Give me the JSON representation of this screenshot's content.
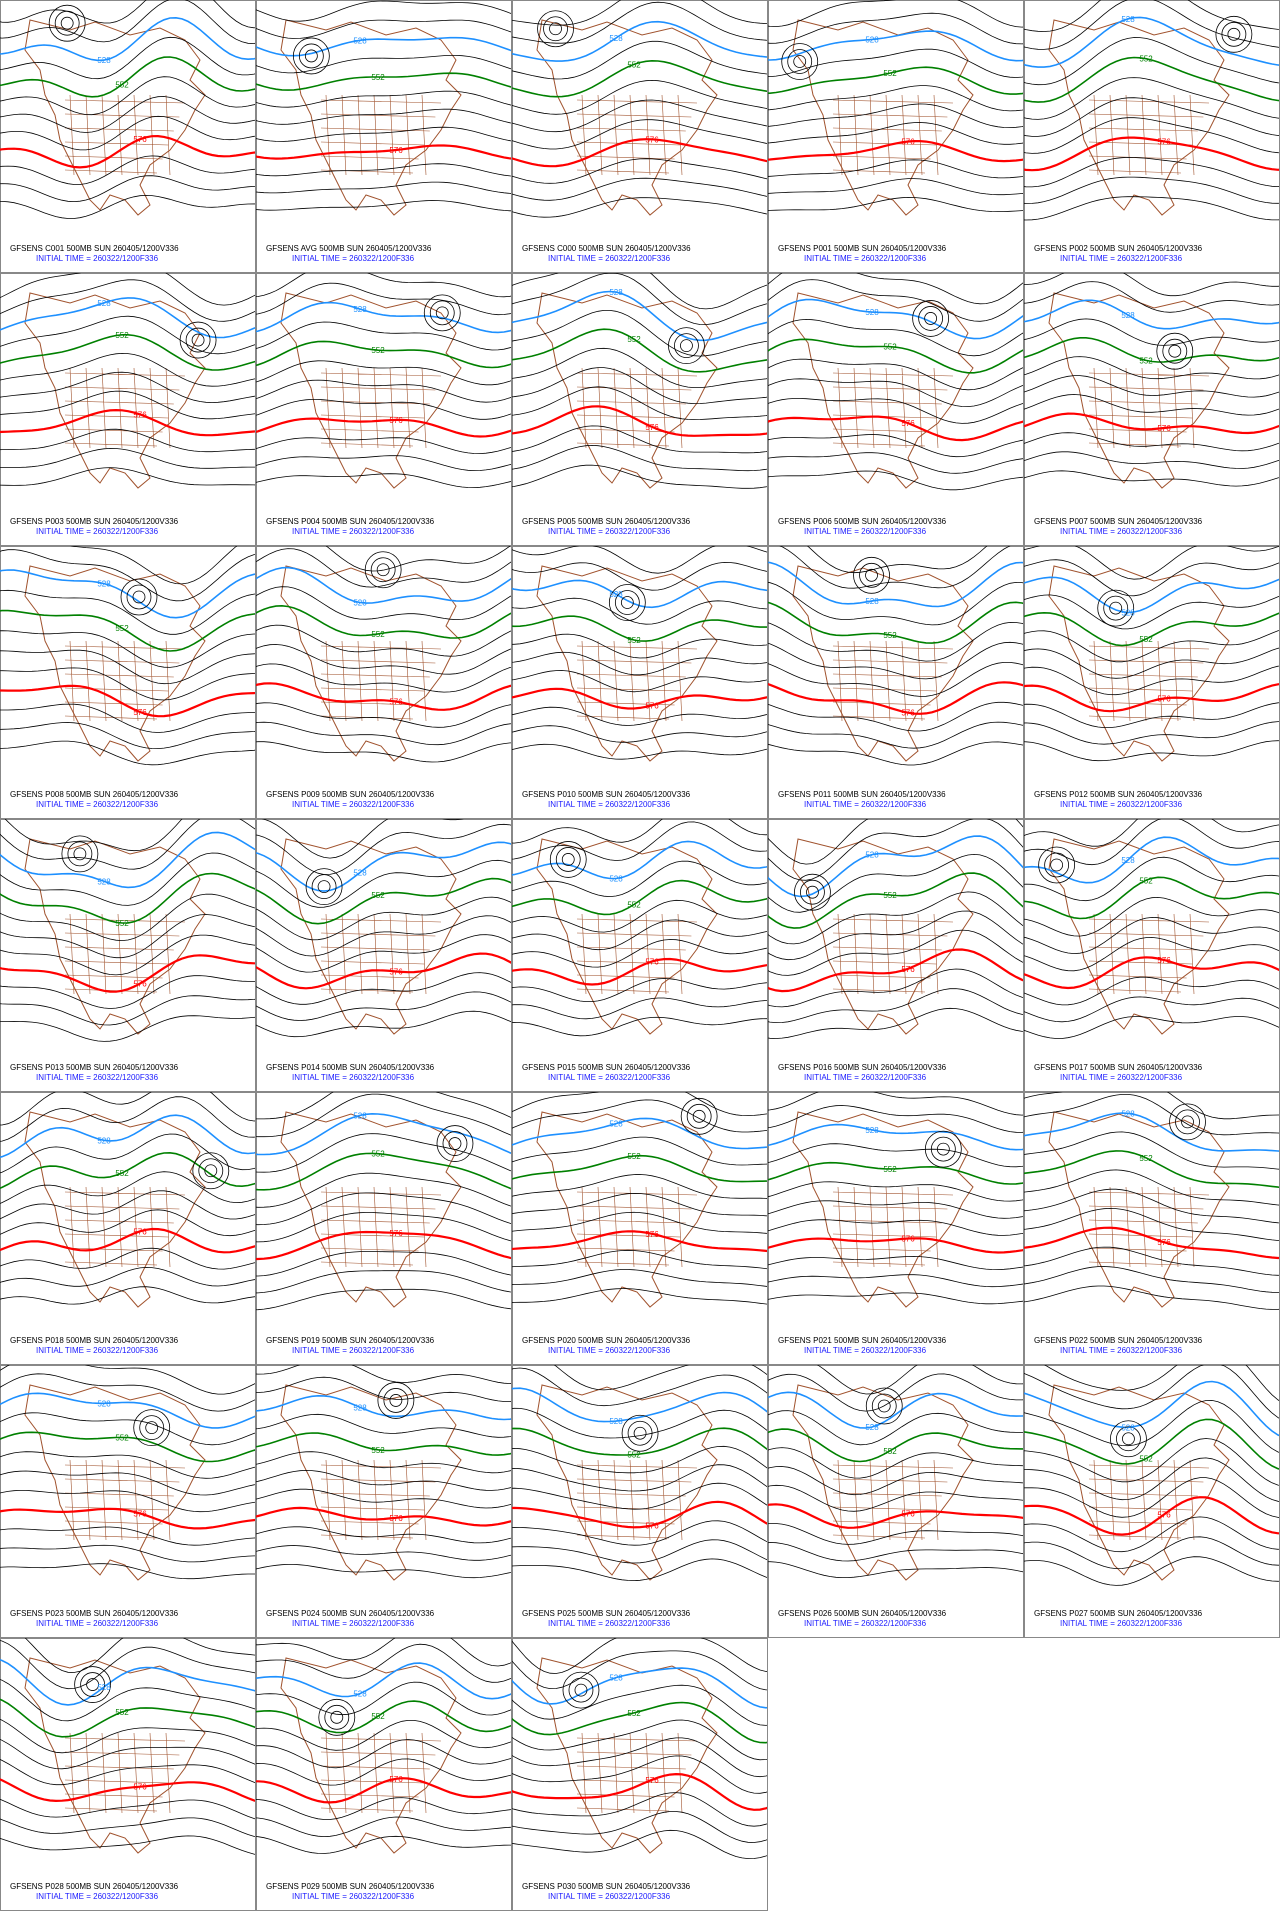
{
  "contour_labels": [
    "528",
    "552",
    "576"
  ],
  "panels": [
    {
      "title": "GFSENS C001 500MB SUN 260405/1200V336",
      "init": "INITIAL TIME = 260322/1200F336"
    },
    {
      "title": "GFSENS AVG 500MB SUN 260405/1200V336",
      "init": "INITIAL TIME = 260322/1200F336"
    },
    {
      "title": "GFSENS C000 500MB SUN 260405/1200V336",
      "init": "INITIAL TIME = 260322/1200F336"
    },
    {
      "title": "GFSENS P001 500MB SUN 260405/1200V336",
      "init": "INITIAL TIME = 260322/1200F336"
    },
    {
      "title": "GFSENS P002 500MB SUN 260405/1200V336",
      "init": "INITIAL TIME = 260322/1200F336"
    },
    {
      "title": "GFSENS P003 500MB SUN 260405/1200V336",
      "init": "INITIAL TIME = 260322/1200F336"
    },
    {
      "title": "GFSENS P004 500MB SUN 260405/1200V336",
      "init": "INITIAL TIME = 260322/1200F336"
    },
    {
      "title": "GFSENS P005 500MB SUN 260405/1200V336",
      "init": "INITIAL TIME = 260322/1200F336"
    },
    {
      "title": "GFSENS P006 500MB SUN 260405/1200V336",
      "init": "INITIAL TIME = 260322/1200F336"
    },
    {
      "title": "GFSENS P007 500MB SUN 260405/1200V336",
      "init": "INITIAL TIME = 260322/1200F336"
    },
    {
      "title": "GFSENS P008 500MB SUN 260405/1200V336",
      "init": "INITIAL TIME = 260322/1200F336"
    },
    {
      "title": "GFSENS P009 500MB SUN 260405/1200V336",
      "init": "INITIAL TIME = 260322/1200F336"
    },
    {
      "title": "GFSENS P010 500MB SUN 260405/1200V336",
      "init": "INITIAL TIME = 260322/1200F336"
    },
    {
      "title": "GFSENS P011 500MB SUN 260405/1200V336",
      "init": "INITIAL TIME = 260322/1200F336"
    },
    {
      "title": "GFSENS P012 500MB SUN 260405/1200V336",
      "init": "INITIAL TIME = 260322/1200F336"
    },
    {
      "title": "GFSENS P013 500MB SUN 260405/1200V336",
      "init": "INITIAL TIME = 260322/1200F336"
    },
    {
      "title": "GFSENS P014 500MB SUN 260405/1200V336",
      "init": "INITIAL TIME = 260322/1200F336"
    },
    {
      "title": "GFSENS P015 500MB SUN 260405/1200V336",
      "init": "INITIAL TIME = 260322/1200F336"
    },
    {
      "title": "GFSENS P016 500MB SUN 260405/1200V336",
      "init": "INITIAL TIME = 260322/1200F336"
    },
    {
      "title": "GFSENS P017 500MB SUN 260405/1200V336",
      "init": "INITIAL TIME = 260322/1200F336"
    },
    {
      "title": "GFSENS P018 500MB SUN 260405/1200V336",
      "init": "INITIAL TIME = 260322/1200F336"
    },
    {
      "title": "GFSENS P019 500MB SUN 260405/1200V336",
      "init": "INITIAL TIME = 260322/1200F336"
    },
    {
      "title": "GFSENS P020 500MB SUN 260405/1200V336",
      "init": "INITIAL TIME = 260322/1200F336"
    },
    {
      "title": "GFSENS P021 500MB SUN 260405/1200V336",
      "init": "INITIAL TIME = 260322/1200F336"
    },
    {
      "title": "GFSENS P022 500MB SUN 260405/1200V336",
      "init": "INITIAL TIME = 260322/1200F336"
    },
    {
      "title": "GFSENS P023 500MB SUN 260405/1200V336",
      "init": "INITIAL TIME = 260322/1200F336"
    },
    {
      "title": "GFSENS P024 500MB SUN 260405/1200V336",
      "init": "INITIAL TIME = 260322/1200F336"
    },
    {
      "title": "GFSENS P025 500MB SUN 260405/1200V336",
      "init": "INITIAL TIME = 260322/1200F336"
    },
    {
      "title": "GFSENS P026 500MB SUN 260405/1200V336",
      "init": "INITIAL TIME = 260322/1200F336"
    },
    {
      "title": "GFSENS P027 500MB SUN 260405/1200V336",
      "init": "INITIAL TIME = 260322/1200F336"
    },
    {
      "title": "GFSENS P028 500MB SUN 260405/1200V336",
      "init": "INITIAL TIME = 260322/1200F336"
    },
    {
      "title": "GFSENS P029 500MB SUN 260405/1200V336",
      "init": "INITIAL TIME = 260322/1200F336"
    },
    {
      "title": "GFSENS P030 500MB SUN 260405/1200V336",
      "init": "INITIAL TIME = 260322/1200F336"
    }
  ]
}
